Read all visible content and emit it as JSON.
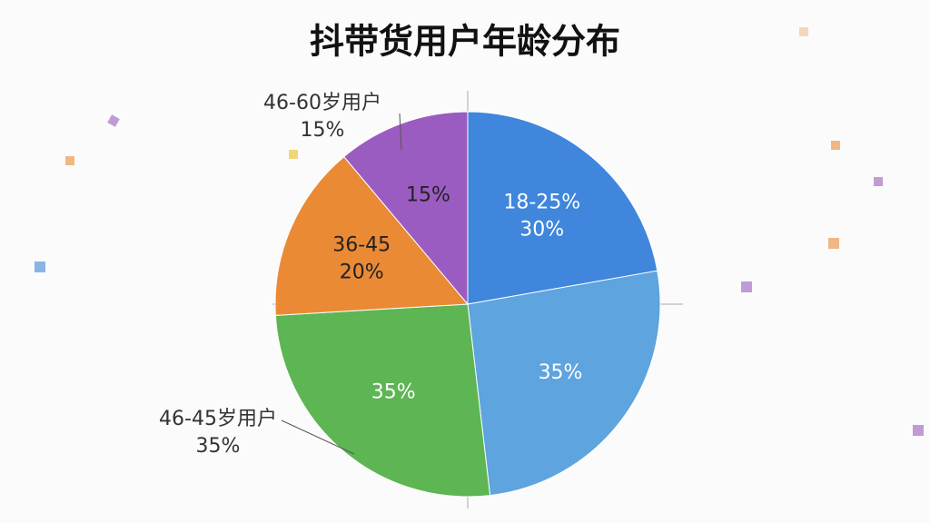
{
  "chart_data": {
    "type": "pie",
    "title": "抖带货用户年龄分布",
    "categories": [
      "18-25%",
      null,
      null,
      "36-45",
      null
    ],
    "values": [
      30,
      35,
      35,
      20,
      15
    ],
    "value_labels": [
      "30%",
      "35%",
      "35%",
      "20%",
      "15%"
    ],
    "colors": [
      "#3f86dc",
      "#5ea4de",
      "#5db554",
      "#ea8a35",
      "#9a5cc0"
    ],
    "label_colors": [
      "#ffffff",
      "#ffffff",
      "#ffffff",
      "#222222",
      "#222222"
    ],
    "annotations": [
      {
        "lines": [
          "46-60岁用户",
          "15%"
        ]
      },
      {
        "lines": [
          "46-45岁用户",
          "35%"
        ]
      }
    ]
  }
}
